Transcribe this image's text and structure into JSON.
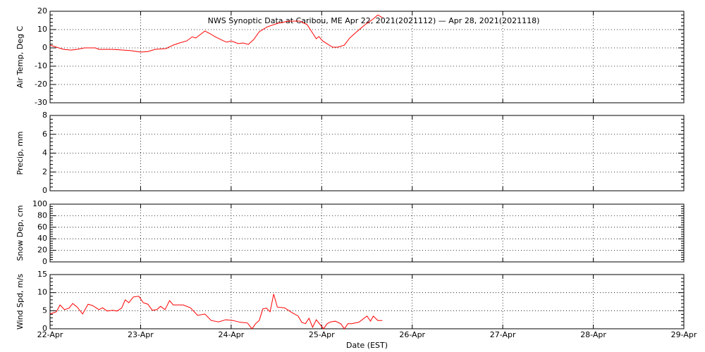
{
  "chart_data": [
    {
      "type": "line",
      "title": "NWS Synoptic Data at Caribou, ME   Apr 22, 2021(2021112) — Apr 28, 2021(2021118)",
      "ylabel": "Air Temp, Deg C",
      "ylim": [
        -30,
        20
      ],
      "yticks": [
        -30,
        -20,
        -10,
        0,
        10,
        20
      ],
      "xlim": [
        0,
        7
      ],
      "grid": true,
      "color": "#ff0000",
      "x": [
        0,
        0.07,
        0.15,
        0.23,
        0.3,
        0.38,
        0.5,
        0.54,
        0.69,
        0.81,
        0.89,
        1.0,
        1.08,
        1.16,
        1.28,
        1.36,
        1.43,
        1.51,
        1.57,
        1.61,
        1.67,
        1.71,
        1.77,
        1.82,
        1.9,
        1.95,
        2.0,
        2.08,
        2.13,
        2.19,
        2.25,
        2.31,
        2.4,
        2.52,
        2.64,
        2.76,
        2.84,
        2.89,
        2.94,
        2.97,
        3.01,
        3.07,
        3.12,
        3.18,
        3.25,
        3.31,
        3.38,
        3.48,
        3.57,
        3.62,
        3.67
      ],
      "values": [
        1.5,
        0.4,
        -0.8,
        -1.2,
        -0.8,
        0,
        0,
        -0.8,
        -0.8,
        -1.2,
        -1.5,
        -2.3,
        -2,
        -0.8,
        -0.4,
        1.5,
        2.7,
        3.8,
        6,
        5.4,
        7.7,
        9.2,
        7.7,
        6.2,
        4.2,
        3.1,
        3.8,
        2.3,
        2.7,
        1.9,
        4.6,
        8.8,
        11.5,
        13.5,
        14.6,
        14.6,
        12.7,
        8.8,
        5,
        6.2,
        3.8,
        1.9,
        0.4,
        0.4,
        1.5,
        5.4,
        8.5,
        12.7,
        15.8,
        18,
        16.5
      ]
    },
    {
      "type": "line",
      "ylabel": "Precip, mm",
      "ylim": [
        0,
        8
      ],
      "yticks": [
        0,
        2,
        4,
        6,
        8
      ],
      "xlim": [
        0,
        7
      ],
      "grid": true
    },
    {
      "type": "line",
      "ylabel": "Snow Dep, cm",
      "ylim": [
        0,
        100
      ],
      "yticks": [
        0,
        20,
        40,
        60,
        80,
        100
      ],
      "xlim": [
        0,
        7
      ],
      "grid": true
    },
    {
      "type": "line",
      "ylabel": "Wind Spd, m/s",
      "xlabel": "Date (EST)",
      "ylim": [
        0,
        15
      ],
      "yticks": [
        0,
        5,
        10,
        15
      ],
      "xlim": [
        0,
        7
      ],
      "xticks": [
        {
          "value": 0,
          "label": "22-Apr"
        },
        {
          "value": 1,
          "label": "23-Apr"
        },
        {
          "value": 2,
          "label": "24-Apr"
        },
        {
          "value": 3,
          "label": "25-Apr"
        },
        {
          "value": 4,
          "label": "26-Apr"
        },
        {
          "value": 5,
          "label": "27-Apr"
        },
        {
          "value": 6,
          "label": "28-Apr"
        },
        {
          "value": 7,
          "label": "29-Apr"
        }
      ],
      "grid": true,
      "color": "#ff0000",
      "x": [
        0,
        0.07,
        0.11,
        0.16,
        0.21,
        0.25,
        0.3,
        0.36,
        0.42,
        0.47,
        0.54,
        0.58,
        0.63,
        0.69,
        0.74,
        0.79,
        0.83,
        0.87,
        0.92,
        0.98,
        1.03,
        1.08,
        1.13,
        1.18,
        1.22,
        1.27,
        1.32,
        1.36,
        1.47,
        1.55,
        1.63,
        1.71,
        1.78,
        1.86,
        1.94,
        2.02,
        2.1,
        2.18,
        2.23,
        2.27,
        2.31,
        2.35,
        2.39,
        2.43,
        2.47,
        2.51,
        2.59,
        2.67,
        2.74,
        2.78,
        2.82,
        2.86,
        2.9,
        2.94,
        3.02,
        3.06,
        3.1,
        3.15,
        3.21,
        3.25,
        3.29,
        3.33,
        3.41,
        3.5,
        3.5,
        3.54,
        3.57,
        3.62,
        3.67
      ],
      "values": [
        4.1,
        4.7,
        6.6,
        5.3,
        5.7,
        7,
        6,
        4.1,
        6.8,
        6.4,
        5.3,
        5.8,
        4.9,
        5.1,
        4.9,
        5.7,
        8,
        7.2,
        8.8,
        9,
        7.2,
        6.8,
        5.1,
        5.3,
        6.2,
        5.3,
        7.8,
        6.6,
        6.6,
        5.8,
        3.7,
        4.1,
        2.3,
        1.9,
        2.5,
        2.3,
        1.8,
        1.6,
        0,
        1.4,
        2.3,
        5.5,
        5.7,
        4.7,
        9.6,
        6,
        5.8,
        4.5,
        3.5,
        1.8,
        1.4,
        2.9,
        0.4,
        2.5,
        0,
        1.4,
        1.9,
        2.1,
        1.4,
        0,
        1.4,
        1.4,
        1.8,
        3.5,
        3.5,
        2.1,
        3.5,
        2.3,
        2.3
      ]
    }
  ]
}
